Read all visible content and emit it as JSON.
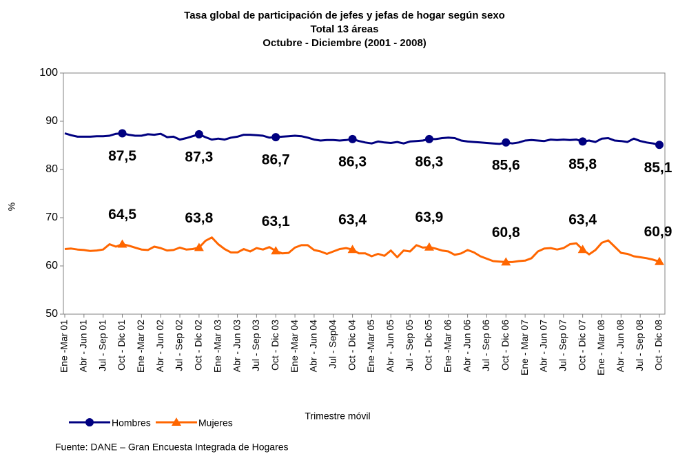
{
  "chart_data": {
    "type": "line",
    "title": "Tasa global de participación de jefes  y jefas de hogar según sexo",
    "subtitle": [
      "Total 13 áreas",
      "Octubre - Diciembre (2001 - 2008)"
    ],
    "ylabel": "%",
    "xlabel": "Trimestre móvil",
    "source": "Fuente: DANE – Gran Encuesta Integrada de Hogares",
    "categories": [
      "Ene -Mar 01",
      null,
      null,
      "Abr - Jun 01",
      null,
      null,
      "Jul - Sep 01",
      null,
      null,
      "Oct - Dic 01",
      null,
      null,
      "Ene -Mar 02",
      null,
      null,
      "Abr - Jun 02",
      null,
      null,
      "Jul - Sep 02",
      null,
      null,
      "Oct - Dic 02",
      null,
      null,
      "Ene -Mar 03",
      null,
      null,
      "Abr - Jun 03",
      null,
      null,
      "Jul - Sep 03",
      null,
      null,
      "Oct - Dic 03",
      null,
      null,
      "Ene -Mar 04",
      null,
      null,
      "Abr - Jun 04",
      null,
      null,
      "Jul - Sep04",
      null,
      null,
      "Oct - Dic 04",
      null,
      null,
      "Ene -Mar 05",
      null,
      null,
      "Abr - Jun 05",
      null,
      null,
      "Jul - Sep 05",
      null,
      null,
      "Oct - Dic 05",
      null,
      null,
      "Ene -Mar 06",
      null,
      null,
      "Abr - Jun 06",
      null,
      null,
      "Jul - Sep 06",
      null,
      null,
      "Oct - Dic 06",
      null,
      null,
      "Ene - Mar 07",
      null,
      null,
      "Abr - Jun 07",
      null,
      null,
      "Jul - Sep 07",
      null,
      null,
      "Oct - Dic 07",
      null,
      null,
      "Ene - Mar 08",
      null,
      null,
      "Abr - Jun 08",
      null,
      null,
      "Jul - Sep 08",
      null,
      null,
      "Oct - Dic 08"
    ],
    "series": [
      {
        "name": "Hombres",
        "color": "#000080",
        "marker": "circle",
        "values": [
          87.5,
          87.1,
          86.8,
          86.8,
          86.8,
          86.9,
          86.9,
          87.0,
          87.4,
          87.5,
          87.2,
          87.0,
          87.0,
          87.3,
          87.2,
          87.4,
          86.7,
          86.8,
          86.2,
          86.5,
          86.9,
          87.3,
          86.7,
          86.2,
          86.4,
          86.2,
          86.6,
          86.8,
          87.2,
          87.2,
          87.1,
          87.0,
          86.6,
          86.7,
          86.8,
          86.9,
          87.0,
          86.9,
          86.6,
          86.2,
          86.0,
          86.1,
          86.1,
          86.0,
          86.1,
          86.3,
          85.9,
          85.6,
          85.4,
          85.8,
          85.6,
          85.5,
          85.7,
          85.4,
          85.8,
          85.9,
          86.0,
          86.3,
          86.3,
          86.5,
          86.6,
          86.5,
          86.0,
          85.8,
          85.7,
          85.6,
          85.5,
          85.4,
          85.3,
          85.6,
          85.4,
          85.6,
          86.0,
          86.1,
          86.0,
          85.9,
          86.2,
          86.1,
          86.2,
          86.1,
          86.2,
          85.8,
          86.0,
          85.7,
          86.4,
          86.5,
          86.0,
          85.9,
          85.7,
          86.4,
          85.9,
          85.6,
          85.4,
          85.1
        ],
        "value_labels": [
          null,
          null,
          null,
          null,
          null,
          null,
          null,
          null,
          null,
          "87,5",
          null,
          null,
          null,
          null,
          null,
          null,
          null,
          null,
          null,
          null,
          null,
          "87,3",
          null,
          null,
          null,
          null,
          null,
          null,
          null,
          null,
          null,
          null,
          null,
          "86,7",
          null,
          null,
          null,
          null,
          null,
          null,
          null,
          null,
          null,
          null,
          null,
          "86,3",
          null,
          null,
          null,
          null,
          null,
          null,
          null,
          null,
          null,
          null,
          null,
          "86,3",
          null,
          null,
          null,
          null,
          null,
          null,
          null,
          null,
          null,
          null,
          null,
          "85,6",
          null,
          null,
          null,
          null,
          null,
          null,
          null,
          null,
          null,
          null,
          null,
          "85,8",
          null,
          null,
          null,
          null,
          null,
          null,
          null,
          null,
          null,
          null,
          null,
          "85,1"
        ]
      },
      {
        "name": "Mujeres",
        "color": "#ff6600",
        "marker": "triangle",
        "values": [
          63.5,
          63.6,
          63.4,
          63.3,
          63.1,
          63.2,
          63.4,
          64.5,
          64.0,
          64.5,
          64.2,
          63.8,
          63.4,
          63.3,
          64.0,
          63.7,
          63.2,
          63.3,
          63.8,
          63.4,
          63.5,
          63.8,
          65.2,
          65.9,
          64.5,
          63.5,
          62.8,
          62.8,
          63.5,
          63.0,
          63.7,
          63.4,
          63.9,
          63.1,
          62.6,
          62.7,
          63.8,
          64.3,
          64.3,
          63.3,
          63.0,
          62.5,
          63.0,
          63.5,
          63.7,
          63.4,
          62.6,
          62.6,
          62.0,
          62.5,
          62.1,
          63.2,
          61.8,
          63.2,
          63.0,
          64.3,
          63.8,
          63.9,
          63.6,
          63.2,
          63.0,
          62.3,
          62.6,
          63.3,
          62.8,
          62.0,
          61.5,
          61.0,
          60.9,
          60.8,
          60.8,
          61.0,
          61.1,
          61.6,
          63.0,
          63.6,
          63.7,
          63.4,
          63.7,
          64.5,
          64.7,
          63.4,
          62.4,
          63.3,
          64.8,
          65.3,
          64.0,
          62.7,
          62.5,
          62.0,
          61.8,
          61.6,
          61.3,
          60.9
        ],
        "value_labels": [
          null,
          null,
          null,
          null,
          null,
          null,
          null,
          null,
          null,
          "64,5",
          null,
          null,
          null,
          null,
          null,
          null,
          null,
          null,
          null,
          null,
          null,
          "63,8",
          null,
          null,
          null,
          null,
          null,
          null,
          null,
          null,
          null,
          null,
          null,
          "63,1",
          null,
          null,
          null,
          null,
          null,
          null,
          null,
          null,
          null,
          null,
          null,
          "63,4",
          null,
          null,
          null,
          null,
          null,
          null,
          null,
          null,
          null,
          null,
          null,
          "63,9",
          null,
          null,
          null,
          null,
          null,
          null,
          null,
          null,
          null,
          null,
          null,
          "60,8",
          null,
          null,
          null,
          null,
          null,
          null,
          null,
          null,
          null,
          null,
          null,
          "63,4",
          null,
          null,
          null,
          null,
          null,
          null,
          null,
          null,
          null,
          null,
          null,
          "60,9"
        ]
      }
    ],
    "ylim": [
      50,
      100
    ],
    "yticks": [
      50,
      60,
      70,
      80,
      90,
      100
    ],
    "grid": false,
    "legend": "bottom-left"
  }
}
